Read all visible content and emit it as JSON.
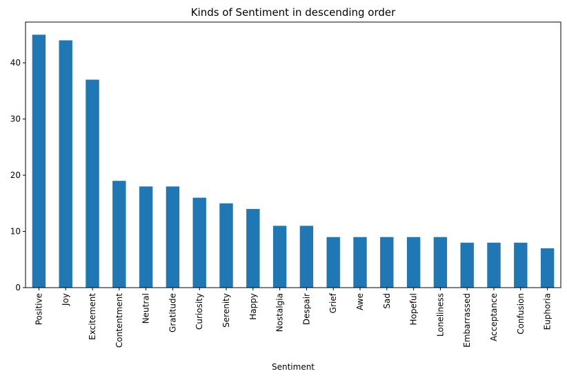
{
  "chart_data": {
    "type": "bar",
    "title": "Kinds of Sentiment in descending order",
    "xlabel": "Sentiment",
    "ylabel": "",
    "categories": [
      "Positive",
      "Joy",
      "Excitement",
      "Contentment",
      "Neutral",
      "Gratitude",
      "Curiosity",
      "Serenity",
      "Happy",
      "Nostalgia",
      "Despair",
      "Grief",
      "Awe",
      "Sad",
      "Hopeful",
      "Loneliness",
      "Embarrassed",
      "Acceptance",
      "Confusion",
      "Euphoria"
    ],
    "values": [
      45,
      44,
      37,
      19,
      18,
      18,
      16,
      15,
      14,
      11,
      11,
      9,
      9,
      9,
      9,
      9,
      8,
      8,
      8,
      7
    ],
    "ylim": [
      0,
      47.25
    ],
    "yticks": [
      0,
      10,
      20,
      30,
      40
    ],
    "bar_color": "#1f77b4",
    "grid": false,
    "legend": "none"
  }
}
